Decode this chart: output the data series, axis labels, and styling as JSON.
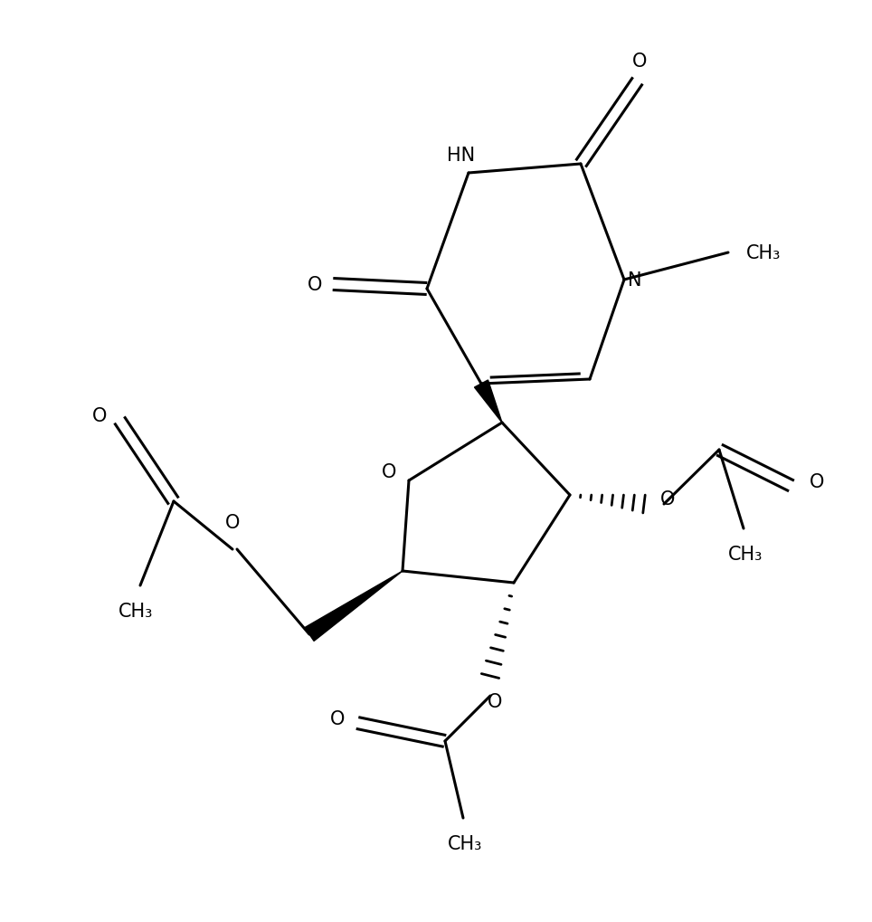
{
  "bg_color": "#ffffff",
  "line_color": "#000000",
  "line_width": 2.2,
  "font_size": 15,
  "figsize": [
    9.64,
    10.2
  ],
  "dpi": 100,
  "xlim": [
    0,
    9.64
  ],
  "ylim": [
    0,
    10.2
  ]
}
